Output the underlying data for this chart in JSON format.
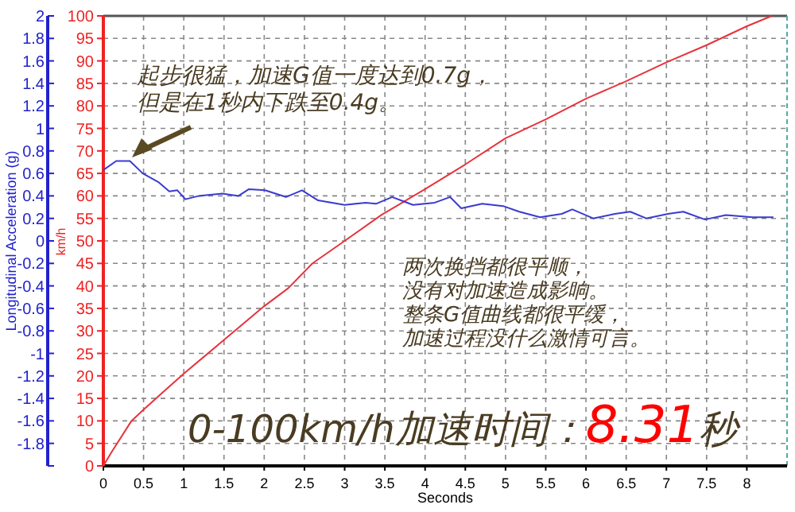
{
  "chart_data": {
    "type": "line",
    "xlabel": "Seconds",
    "ylabel": "Longitudinal Acceleration (g)",
    "y2label": "km/h",
    "xlim": [
      0,
      8.5
    ],
    "xticks": [
      0,
      0.5,
      1,
      1.5,
      2,
      2.5,
      3,
      3.5,
      4,
      4.5,
      5,
      5.5,
      6,
      6.5,
      7,
      7.5,
      8
    ],
    "ylim": [
      -2,
      2
    ],
    "yticks": [
      {
        "value": -2,
        "label": null
      },
      -1.8,
      -1.6,
      -1.4,
      -1.2,
      -1,
      -0.8,
      -0.6,
      -0.4,
      -0.2,
      0,
      0.2,
      0.4,
      0.6,
      0.8,
      1,
      1.2,
      1.4,
      1.6,
      1.8,
      2
    ],
    "y2lim": [
      0,
      100
    ],
    "y2ticks": [
      0,
      5,
      10,
      15,
      20,
      25,
      30,
      35,
      40,
      45,
      50,
      55,
      60,
      65,
      70,
      75,
      80,
      85,
      90,
      95,
      100
    ],
    "grid": true,
    "line_style": "solid",
    "marker": "none",
    "series": [
      {
        "color": "#e8323c",
        "axis": "y2",
        "x": [
          0,
          0.1,
          0.35,
          0.5,
          0.75,
          1,
          1.5,
          1.7,
          2,
          2.3,
          2.6,
          3,
          3.46,
          4,
          4.5,
          5,
          5.5,
          6,
          6.5,
          7,
          7.5,
          8,
          8.31
        ],
        "values": [
          0,
          3,
          10,
          12.5,
          16.5,
          20.5,
          28,
          31,
          35.5,
          39.5,
          45,
          50,
          55.8,
          61.5,
          67,
          72.8,
          77,
          81.6,
          85.5,
          89.7,
          93.5,
          97.7,
          100
        ]
      },
      {
        "color": "#3a3ad0",
        "x": [
          0,
          0.16,
          0.33,
          0.49,
          0.69,
          0.82,
          0.92,
          1.02,
          1.19,
          1.48,
          1.68,
          1.81,
          2.01,
          2.27,
          2.47,
          2.67,
          3.0,
          3.26,
          3.39,
          3.59,
          3.85,
          4.12,
          4.31,
          4.45,
          4.71,
          4.97,
          5.17,
          5.43,
          5.7,
          5.83,
          6.09,
          6.36,
          6.55,
          6.75,
          7.02,
          7.21,
          7.48,
          7.74,
          8.07,
          8.33
        ],
        "values": [
          0.63,
          0.71,
          0.71,
          0.6,
          0.52,
          0.44,
          0.45,
          0.37,
          0.4,
          0.42,
          0.4,
          0.46,
          0.45,
          0.39,
          0.45,
          0.36,
          0.32,
          0.34,
          0.33,
          0.39,
          0.32,
          0.34,
          0.39,
          0.29,
          0.33,
          0.31,
          0.26,
          0.21,
          0.24,
          0.28,
          0.2,
          0.24,
          0.26,
          0.2,
          0.24,
          0.26,
          0.19,
          0.23,
          0.21,
          0.21
        ]
      }
    ],
    "annotations": [
      "起步很猛，加速G值一度达到0.7g，",
      "但是在1秒内下跌至0.4g。",
      "两次换挡都很平顺，",
      "没有对加速造成影响。",
      "整条G值曲线都很平缓，",
      "加速过程没什么激情可言。",
      "0-100km/h加速时间：8.31秒"
    ]
  }
}
